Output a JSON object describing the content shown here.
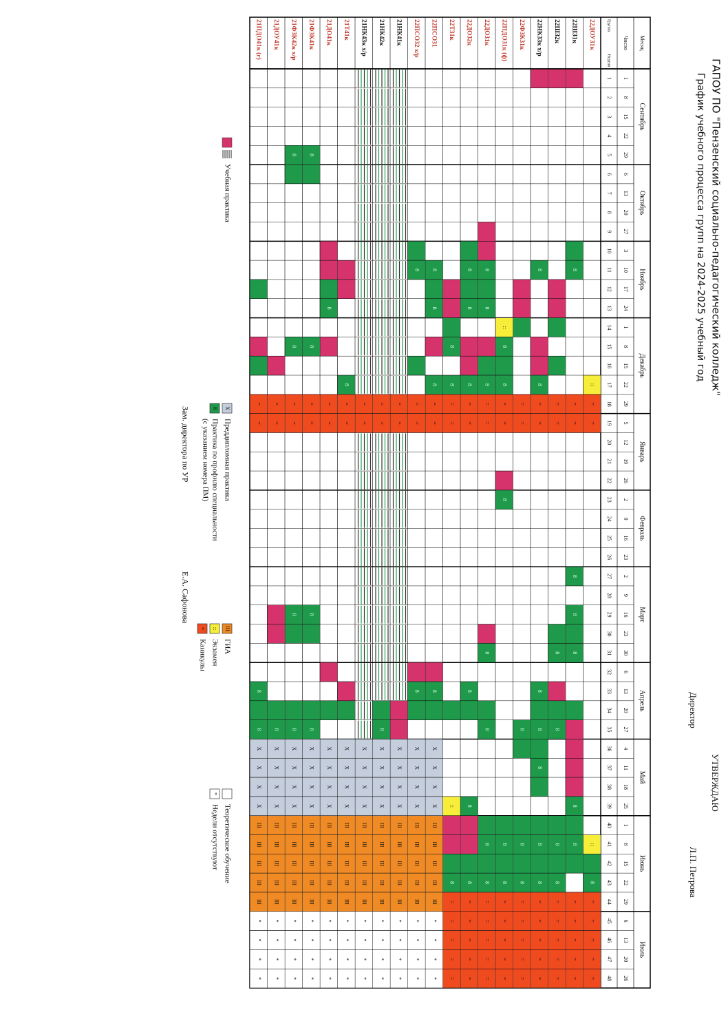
{
  "header": {
    "org": "ГАПОУ ПО \"Пензенский социально-педагогический колледж\"",
    "title": "График учебного процесса групп на 2024-2025 учебный год",
    "approve": "УТВЕРЖДАЮ",
    "director": "Директор",
    "director_name": "Л.П. Петрова"
  },
  "table": {
    "month_label": "Месяц",
    "date_label": "Число",
    "group_label": "Группа",
    "week_label": "Неделя",
    "months": [
      {
        "name": "Сентябрь",
        "dates": [
          1,
          8,
          15,
          22,
          29
        ]
      },
      {
        "name": "Октябрь",
        "dates": [
          6,
          13,
          20,
          27
        ]
      },
      {
        "name": "Ноябрь",
        "dates": [
          3,
          10,
          17,
          24
        ]
      },
      {
        "name": "Декабрь",
        "dates": [
          1,
          8,
          15,
          22,
          29
        ]
      },
      {
        "name": "Январь",
        "dates": [
          5,
          12,
          19,
          26
        ]
      },
      {
        "name": "Февраль",
        "dates": [
          2,
          9,
          16,
          23
        ]
      },
      {
        "name": "Март",
        "dates": [
          2,
          9,
          16,
          23,
          30
        ]
      },
      {
        "name": "Апрель",
        "dates": [
          6,
          13,
          20,
          27
        ]
      },
      {
        "name": "Май",
        "dates": [
          4,
          11,
          18,
          25
        ]
      },
      {
        "name": "Июнь",
        "dates": [
          1,
          8,
          15,
          22,
          29
        ]
      },
      {
        "name": "Июль",
        "dates": [
          6,
          13,
          20,
          26
        ]
      }
    ],
    "weeks": [
      1,
      2,
      3,
      4,
      5,
      6,
      7,
      8,
      9,
      10,
      11,
      12,
      13,
      14,
      15,
      16,
      17,
      18,
      19,
      20,
      21,
      22,
      23,
      24,
      25,
      26,
      27,
      28,
      29,
      30,
      31,
      32,
      33,
      34,
      35,
      36,
      37,
      38,
      39,
      40,
      41,
      42,
      43,
      44,
      45,
      46,
      47,
      48
    ],
    "groups": [
      "22ДОУ31к",
      "22ШЗ1к",
      "22ШЗ2к",
      "22НК33к х/р",
      "22ФЗК31к",
      "22ПДО31к (ф)",
      "22ДО31к",
      "22ДО32к",
      "22Т31к",
      "22ПСО31",
      "22ПСО32 х/р",
      "21НК41к",
      "21НК42к",
      "21НК43к х/р",
      "21Т41к",
      "21ДО41к",
      "21ФЗК41к",
      "21ФЗК42к х/р",
      "21ДОУ41к",
      "21ПДО41к (г)"
    ]
  },
  "legend": [
    {
      "label": "Учебная практика"
    },
    {
      "symbol": "X",
      "label": "Преддипломная практика"
    },
    {
      "symbol": "8",
      "label": "Практика по профилю специальности",
      "note": "(с указанием номера ПМ)"
    },
    {
      "symbol": "III",
      "label": "ГИА"
    },
    {
      "symbol": "::",
      "label": "Экзамен"
    },
    {
      "symbol": "=",
      "label": "Каникулы"
    },
    {
      "label": "Теоретическое обучение"
    },
    {
      "symbol": "*",
      "label": "Недели отсутствуют"
    }
  ],
  "footer": {
    "deputy": "Зам. директора по УР",
    "deputy_name": "Е.А. Сафонова"
  }
}
